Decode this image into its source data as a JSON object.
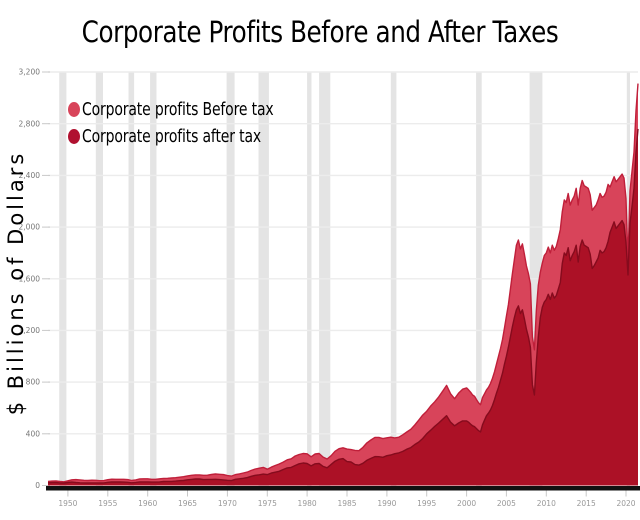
{
  "title": "Corporate Profits Before and After Taxes",
  "y_axis_title": "$ Billions of Dollars",
  "legend": [
    {
      "label": "Corporate profits Before tax",
      "color": "#d8445a"
    },
    {
      "label": "Corporate profits after tax",
      "color": "#b01130"
    }
  ],
  "chart_data": {
    "type": "area",
    "title": "Corporate Profits Before and After Taxes",
    "xlabel": "",
    "ylabel": "$ Billions of Dollars",
    "x_range": [
      1947.5,
      2021.5
    ],
    "ylim": [
      0,
      3200
    ],
    "grid": true,
    "legend_position": "top-left",
    "colors": {
      "recession_band": "#e4e4e4",
      "gridline": "#ececec",
      "axis_bar": "#111111",
      "x_tick_label": "#999999",
      "y_tick_label": "#777777",
      "tick_mark": "#c8c8c8"
    },
    "y_ticks": [
      {
        "value": 0,
        "label": "0"
      },
      {
        "value": 400,
        "label": "400"
      },
      {
        "value": 800,
        "label": "800"
      },
      {
        "value": 1200,
        "label": "1,200"
      },
      {
        "value": 1600,
        "label": "1,600"
      },
      {
        "value": 2000,
        "label": "2,000"
      },
      {
        "value": 2400,
        "label": "2,400"
      },
      {
        "value": 2800,
        "label": "2,800"
      },
      {
        "value": 3200,
        "label": "3,200"
      }
    ],
    "x_ticks": [
      {
        "value": 1950,
        "label": "1950"
      },
      {
        "value": 1955,
        "label": "1955"
      },
      {
        "value": 1960,
        "label": "1960"
      },
      {
        "value": 1965,
        "label": "1965"
      },
      {
        "value": 1970,
        "label": "1970"
      },
      {
        "value": 1975,
        "label": "1975"
      },
      {
        "value": 1980,
        "label": "1980"
      },
      {
        "value": 1985,
        "label": "1985"
      },
      {
        "value": 1990,
        "label": "1990"
      },
      {
        "value": 1995,
        "label": "1995"
      },
      {
        "value": 2000,
        "label": "2000"
      },
      {
        "value": 2005,
        "label": "2005"
      },
      {
        "value": 2010,
        "label": "2010"
      },
      {
        "value": 2015,
        "label": "2015"
      },
      {
        "value": 2020,
        "label": "2020"
      }
    ],
    "recession_bands": [
      [
        1948.9,
        1949.8
      ],
      [
        1953.5,
        1954.4
      ],
      [
        1957.6,
        1958.3
      ],
      [
        1960.3,
        1961.1
      ],
      [
        1969.9,
        1970.9
      ],
      [
        1973.9,
        1975.2
      ],
      [
        1980.0,
        1980.55
      ],
      [
        1981.5,
        1982.9
      ],
      [
        1990.5,
        1991.2
      ],
      [
        2001.2,
        2001.9
      ],
      [
        2007.9,
        2009.5
      ],
      [
        2020.1,
        2020.5
      ]
    ],
    "x": [
      1947.5,
      1948,
      1948.5,
      1949,
      1949.5,
      1950,
      1950.5,
      1951,
      1951.5,
      1952,
      1952.5,
      1953,
      1953.5,
      1954,
      1954.5,
      1955,
      1955.5,
      1956,
      1956.5,
      1957,
      1957.5,
      1958,
      1958.5,
      1959,
      1959.5,
      1960,
      1960.5,
      1961,
      1961.5,
      1962,
      1962.5,
      1963,
      1963.5,
      1964,
      1964.5,
      1965,
      1965.5,
      1966,
      1966.5,
      1967,
      1967.5,
      1968,
      1968.5,
      1969,
      1969.5,
      1970,
      1970.5,
      1971,
      1971.5,
      1972,
      1972.5,
      1973,
      1973.5,
      1974,
      1974.5,
      1975,
      1975.5,
      1976,
      1976.5,
      1977,
      1977.5,
      1978,
      1978.5,
      1979,
      1979.5,
      1980,
      1980.5,
      1981,
      1981.5,
      1982,
      1982.5,
      1983,
      1983.5,
      1984,
      1984.5,
      1985,
      1985.5,
      1986,
      1986.5,
      1987,
      1987.5,
      1988,
      1988.5,
      1989,
      1989.5,
      1990,
      1990.5,
      1991,
      1991.5,
      1992,
      1992.5,
      1993,
      1993.5,
      1994,
      1994.5,
      1995,
      1995.5,
      1996,
      1996.5,
      1997,
      1997.5,
      1998,
      1998.5,
      1999,
      1999.5,
      2000,
      2000.25,
      2000.5,
      2000.75,
      2001,
      2001.25,
      2001.5,
      2001.75,
      2002,
      2002.25,
      2002.5,
      2002.75,
      2003,
      2003.25,
      2003.5,
      2003.75,
      2004,
      2004.25,
      2004.5,
      2004.75,
      2005,
      2005.25,
      2005.5,
      2005.75,
      2006,
      2006.25,
      2006.5,
      2006.75,
      2007,
      2007.25,
      2007.5,
      2007.75,
      2008,
      2008.25,
      2008.5,
      2008.75,
      2009,
      2009.25,
      2009.5,
      2009.75,
      2010,
      2010.25,
      2010.5,
      2010.75,
      2011,
      2011.25,
      2011.5,
      2011.75,
      2012,
      2012.25,
      2012.5,
      2012.75,
      2013,
      2013.25,
      2013.5,
      2013.75,
      2014,
      2014.25,
      2014.5,
      2014.75,
      2015,
      2015.25,
      2015.5,
      2015.75,
      2016,
      2016.25,
      2016.5,
      2016.75,
      2017,
      2017.25,
      2017.5,
      2017.75,
      2018,
      2018.25,
      2018.5,
      2018.75,
      2019,
      2019.25,
      2019.5,
      2019.75,
      2020,
      2020.25,
      2020.5,
      2020.75,
      2021,
      2021.25,
      2021.5
    ],
    "series": [
      {
        "name": "Corporate profits Before tax",
        "fill": "#d8445a",
        "line": "#c01f3a",
        "values": [
          32,
          34,
          35,
          31,
          29,
          36,
          44,
          46,
          43,
          40,
          39,
          41,
          40,
          37,
          38,
          45,
          49,
          48,
          48,
          48,
          46,
          39,
          43,
          51,
          52,
          52,
          48,
          48,
          52,
          55,
          56,
          58,
          60,
          64,
          68,
          74,
          79,
          82,
          82,
          79,
          80,
          85,
          89,
          87,
          84,
          77,
          73,
          84,
          90,
          97,
          104,
          117,
          128,
          134,
          140,
          126,
          142,
          155,
          166,
          181,
          199,
          207,
          228,
          240,
          248,
          245,
          222,
          244,
          248,
          220,
          205,
          230,
          265,
          285,
          292,
          282,
          278,
          272,
          269,
          295,
          330,
          352,
          372,
          372,
          363,
          369,
          374,
          368,
          374,
          392,
          414,
          435,
          468,
          505,
          545,
          575,
          615,
          648,
          686,
          730,
          775,
          710,
          672,
          715,
          745,
          755,
          740,
          722,
          700,
          690,
          665,
          640,
          625,
          680,
          710,
          740,
          760,
          790,
          830,
          880,
          940,
          1000,
          1060,
          1130,
          1220,
          1310,
          1400,
          1520,
          1640,
          1750,
          1860,
          1900,
          1830,
          1870,
          1790,
          1700,
          1640,
          1560,
          1150,
          1050,
          1350,
          1550,
          1650,
          1720,
          1780,
          1800,
          1845,
          1800,
          1860,
          1820,
          1850,
          1910,
          1980,
          2120,
          2210,
          2190,
          2260,
          2170,
          2210,
          2240,
          2300,
          2170,
          2300,
          2360,
          2320,
          2310,
          2300,
          2250,
          2130,
          2150,
          2170,
          2210,
          2260,
          2230,
          2240,
          2270,
          2330,
          2310,
          2350,
          2390,
          2350,
          2370,
          2390,
          2410,
          2380,
          2220,
          1740,
          2280,
          2430,
          2580,
          2900,
          3110
        ]
      },
      {
        "name": "Corporate profits after tax",
        "fill": "#ac1126",
        "line": "#850b1d",
        "values": [
          21,
          23,
          23,
          20,
          19,
          23,
          26,
          23,
          21,
          20,
          19,
          20,
          20,
          19,
          20,
          25,
          28,
          27,
          27,
          26,
          25,
          21,
          24,
          28,
          28,
          28,
          26,
          26,
          28,
          31,
          32,
          32,
          34,
          37,
          39,
          44,
          47,
          50,
          50,
          46,
          47,
          47,
          48,
          46,
          43,
          40,
          38,
          48,
          52,
          56,
          61,
          71,
          79,
          83,
          88,
          84,
          96,
          103,
          110,
          124,
          136,
          140,
          155,
          168,
          174,
          170,
          152,
          168,
          170,
          148,
          137,
          162,
          188,
          203,
          208,
          185,
          182,
          162,
          158,
          172,
          195,
          210,
          224,
          223,
          218,
          231,
          236,
          246,
          252,
          264,
          281,
          293,
          317,
          336,
          364,
          400,
          428,
          457,
          484,
          512,
          540,
          490,
          462,
          484,
          500,
          500,
          490,
          475,
          462,
          455,
          440,
          425,
          415,
          470,
          505,
          540,
          560,
          585,
          620,
          665,
          715,
          760,
          815,
          870,
          940,
          1000,
          1070,
          1150,
          1230,
          1300,
          1360,
          1390,
          1330,
          1360,
          1290,
          1210,
          1150,
          1070,
          780,
          700,
          950,
          1150,
          1300,
          1380,
          1420,
          1440,
          1480,
          1440,
          1490,
          1450,
          1470,
          1520,
          1570,
          1720,
          1800,
          1780,
          1840,
          1740,
          1780,
          1810,
          1860,
          1730,
          1850,
          1900,
          1860,
          1850,
          1840,
          1790,
          1680,
          1700,
          1730,
          1760,
          1820,
          1800,
          1810,
          1840,
          1890,
          1960,
          2000,
          2040,
          1990,
          2010,
          2030,
          2050,
          2020,
          1880,
          1630,
          2030,
          2160,
          2300,
          2580,
          2760
        ]
      }
    ]
  }
}
